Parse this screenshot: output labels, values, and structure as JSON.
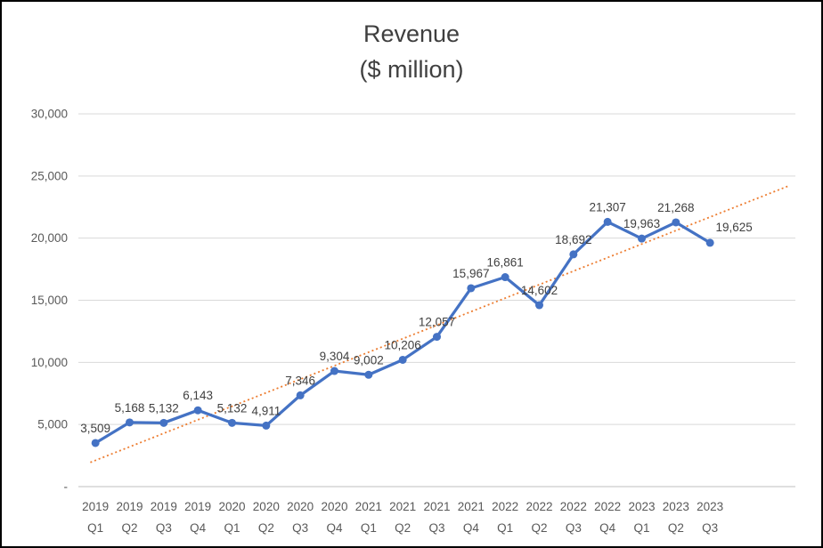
{
  "frame": {
    "background": "#ffffff",
    "border_color": "#000000"
  },
  "chart_data": {
    "type": "line",
    "title": "Revenue",
    "subtitle": "($ million)",
    "categories": [
      {
        "year": "2019",
        "quarter": "Q1"
      },
      {
        "year": "2019",
        "quarter": "Q2"
      },
      {
        "year": "2019",
        "quarter": "Q3"
      },
      {
        "year": "2019",
        "quarter": "Q4"
      },
      {
        "year": "2020",
        "quarter": "Q1"
      },
      {
        "year": "2020",
        "quarter": "Q2"
      },
      {
        "year": "2020",
        "quarter": "Q3"
      },
      {
        "year": "2020",
        "quarter": "Q4"
      },
      {
        "year": "2021",
        "quarter": "Q1"
      },
      {
        "year": "2021",
        "quarter": "Q2"
      },
      {
        "year": "2021",
        "quarter": "Q3"
      },
      {
        "year": "2021",
        "quarter": "Q4"
      },
      {
        "year": "2022",
        "quarter": "Q1"
      },
      {
        "year": "2022",
        "quarter": "Q2"
      },
      {
        "year": "2022",
        "quarter": "Q3"
      },
      {
        "year": "2022",
        "quarter": "Q4"
      },
      {
        "year": "2023",
        "quarter": "Q1"
      },
      {
        "year": "2023",
        "quarter": "Q2"
      },
      {
        "year": "2023",
        "quarter": "Q3"
      }
    ],
    "values": [
      3509,
      5168,
      5132,
      6143,
      5132,
      4911,
      7346,
      9304,
      9002,
      10206,
      12057,
      15967,
      16861,
      14602,
      18692,
      21307,
      19963,
      21268,
      19625
    ],
    "point_labels": [
      "3,509",
      "5,168",
      "5,132",
      "6,143",
      "5,132",
      "4,911",
      "7,346",
      "9,304",
      "9,002",
      "10,206",
      "12,057",
      "15,967",
      "16,861",
      "14,602",
      "18,692",
      "21,307",
      "19,963",
      "21,268",
      "19,625"
    ],
    "ylim": [
      0,
      30000
    ],
    "ytick_step": 5000,
    "ytick_labels": [
      "-",
      "5,000",
      "10,000",
      "15,000",
      "20,000",
      "25,000",
      "30,000"
    ],
    "grid": true,
    "legend": "none",
    "trendline": {
      "type": "linear",
      "style": "dotted"
    },
    "colors": {
      "series": "#4472C4",
      "trendline": "#ED7D31",
      "gridline": "#D9D9D9",
      "axis_line": "#BFBFBF",
      "axis_text": "#595959",
      "label_text": "#404040",
      "title_text": "#3f3f3f"
    }
  }
}
